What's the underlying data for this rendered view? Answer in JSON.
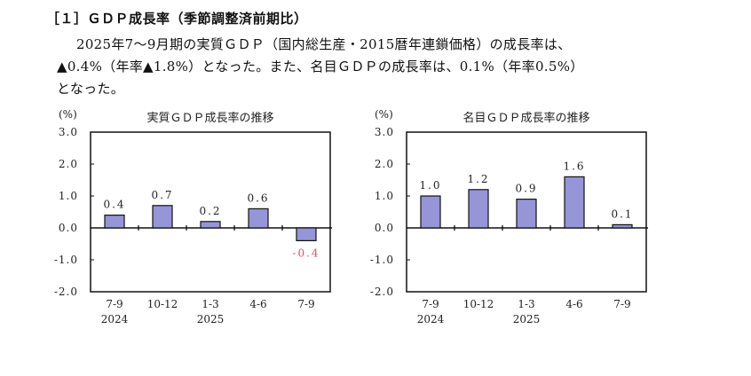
{
  "heading": "［１］ＧＤＰ成長率（季節調整済前期比）",
  "paragraph": {
    "line1": "2025年7～9月期の実質ＧＤＰ（国内総生産・2015暦年連鎖価格）の成長率は、",
    "line2": "▲0.4%（年率▲1.8%）となった。また、名目ＧＤＰの成長率は、0.1%（年率0.5%）",
    "line3": "となった。"
  },
  "colors": {
    "bar": "#9595d8",
    "negative_label": "#e0506a",
    "axis": "#111111"
  },
  "chart_data": [
    {
      "type": "bar",
      "title": "実質ＧＤＰ成長率の推移",
      "ylabel": "(%)",
      "ylim": [
        -2.0,
        3.0
      ],
      "yticks": [
        "3.0",
        "2.0",
        "1.0",
        "0.0",
        "-1.0",
        "-2.0"
      ],
      "categories": [
        "7-9",
        "10-12",
        "1-3",
        "4-6",
        "7-9"
      ],
      "year_labels": [
        "2024",
        "",
        "2025",
        "",
        ""
      ],
      "values": [
        0.4,
        0.7,
        0.2,
        0.6,
        -0.4
      ],
      "data_labels": [
        "0.4",
        "0.7",
        "0.2",
        "0.6",
        "-0.4"
      ]
    },
    {
      "type": "bar",
      "title": "名目ＧＤＰ成長率の推移",
      "ylabel": "(%)",
      "ylim": [
        -2.0,
        3.0
      ],
      "yticks": [
        "3.0",
        "2.0",
        "1.0",
        "0.0",
        "-1.0",
        "-2.0"
      ],
      "categories": [
        "7-9",
        "10-12",
        "1-3",
        "4-6",
        "7-9"
      ],
      "year_labels": [
        "2024",
        "",
        "2025",
        "",
        ""
      ],
      "values": [
        1.0,
        1.2,
        0.9,
        1.6,
        0.1
      ],
      "data_labels": [
        "1.0",
        "1.2",
        "0.9",
        "1.6",
        "0.1"
      ]
    }
  ]
}
